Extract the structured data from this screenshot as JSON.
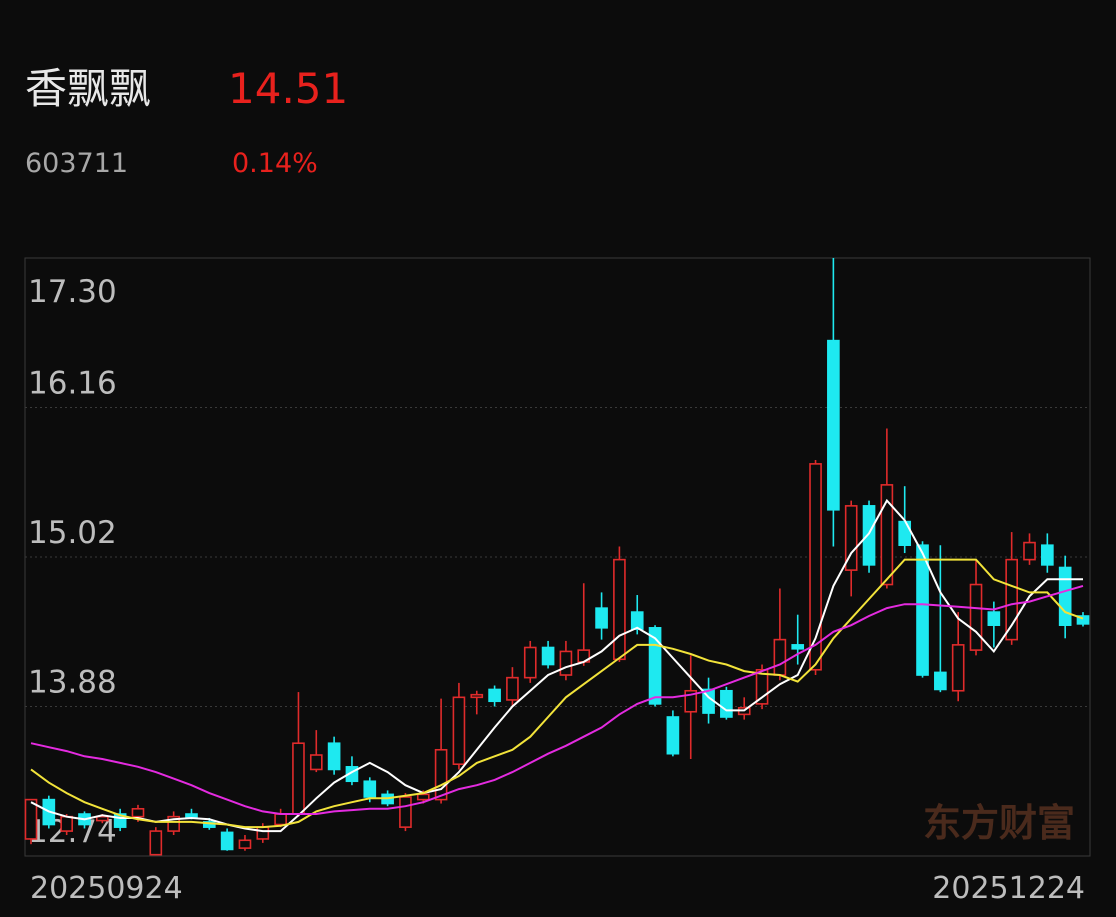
{
  "header": {
    "name": "香飘飘",
    "price": "14.51",
    "code": "603711",
    "change": "0.14%"
  },
  "chart_data": {
    "type": "candlestick",
    "categories": [
      "20250924",
      null,
      null,
      null,
      null,
      null,
      null,
      null,
      null,
      null,
      null,
      null,
      null,
      null,
      null,
      null,
      null,
      null,
      null,
      null,
      null,
      null,
      null,
      null,
      null,
      null,
      null,
      null,
      null,
      null,
      null,
      null,
      null,
      null,
      null,
      null,
      null,
      null,
      null,
      null,
      null,
      null,
      null,
      null,
      null,
      null,
      null,
      null,
      null,
      null,
      null,
      null,
      null,
      null,
      null,
      null,
      null,
      null,
      null,
      "20251224"
    ],
    "open": [
      12.87,
      13.17,
      12.93,
      13.06,
      13.01,
      13.06,
      13.04,
      12.75,
      12.93,
      13.06,
      13.0,
      12.92,
      12.8,
      12.87,
      12.98,
      13.06,
      13.4,
      13.6,
      13.42,
      13.31,
      13.21,
      12.96,
      13.17,
      13.17,
      13.44,
      13.95,
      14.01,
      13.93,
      14.1,
      14.33,
      14.12,
      14.22,
      14.63,
      14.24,
      14.6,
      14.48,
      13.8,
      13.84,
      14.01,
      14.0,
      13.82,
      13.9,
      14.12,
      14.35,
      14.16,
      16.67,
      14.92,
      15.41,
      14.81,
      15.29,
      15.11,
      14.14,
      14.0,
      14.31,
      14.6,
      14.39,
      15.0,
      15.11,
      14.94,
      14.57
    ],
    "high": [
      13.17,
      13.2,
      13.06,
      13.08,
      13.06,
      13.1,
      13.13,
      12.96,
      13.08,
      13.1,
      13.03,
      12.95,
      12.9,
      12.99,
      13.1,
      13.99,
      13.7,
      13.65,
      13.5,
      13.34,
      13.24,
      13.22,
      13.24,
      13.94,
      14.06,
      14.0,
      14.04,
      14.18,
      14.38,
      14.38,
      14.38,
      14.82,
      14.75,
      15.1,
      14.73,
      14.5,
      13.85,
      14.27,
      14.1,
      14.03,
      13.95,
      14.2,
      14.78,
      14.58,
      15.76,
      17.3,
      15.45,
      15.45,
      16.0,
      15.56,
      15.14,
      15.11,
      14.6,
      15.0,
      14.68,
      15.21,
      15.2,
      15.2,
      15.03,
      14.6
    ],
    "low": [
      12.83,
      12.95,
      12.9,
      12.95,
      12.99,
      12.93,
      13.0,
      12.75,
      12.9,
      13.02,
      12.94,
      12.78,
      12.78,
      12.84,
      12.96,
      13.04,
      13.38,
      13.36,
      13.28,
      13.15,
      13.12,
      12.93,
      13.14,
      13.14,
      13.4,
      13.82,
      13.88,
      13.88,
      14.06,
      14.17,
      14.08,
      14.19,
      14.39,
      14.22,
      14.43,
      13.88,
      13.5,
      13.48,
      13.75,
      13.78,
      13.78,
      13.86,
      14.08,
      14.2,
      14.12,
      15.1,
      14.72,
      14.9,
      14.78,
      15.05,
      14.1,
      13.99,
      13.92,
      14.27,
      14.33,
      14.35,
      14.96,
      14.9,
      14.4,
      14.49
    ],
    "close": [
      13.17,
      12.98,
      13.04,
      12.98,
      13.04,
      12.96,
      13.1,
      12.93,
      13.04,
      13.04,
      12.96,
      12.79,
      12.86,
      12.96,
      13.06,
      13.6,
      13.51,
      13.4,
      13.31,
      13.19,
      13.14,
      13.19,
      13.21,
      13.55,
      13.95,
      13.97,
      13.92,
      14.1,
      14.33,
      14.2,
      14.3,
      14.31,
      14.48,
      15.0,
      14.47,
      13.9,
      13.52,
      14.0,
      13.83,
      13.8,
      13.87,
      14.16,
      14.39,
      14.32,
      15.73,
      15.38,
      15.41,
      14.96,
      15.57,
      15.11,
      14.12,
      14.01,
      14.35,
      14.81,
      14.5,
      15.0,
      15.13,
      14.96,
      14.5,
      14.51
    ],
    "up_color": "#e02b2b",
    "down_color": "#1ee9f0",
    "lines": [
      {
        "color": "#ffffff",
        "values": [
          13.15,
          13.08,
          13.04,
          13.02,
          13.05,
          13.03,
          13.03,
          13.0,
          13.02,
          13.03,
          13.02,
          12.98,
          12.95,
          12.93,
          12.93,
          13.05,
          13.18,
          13.3,
          13.38,
          13.45,
          13.38,
          13.28,
          13.22,
          13.25,
          13.38,
          13.55,
          13.72,
          13.88,
          14.0,
          14.12,
          14.18,
          14.22,
          14.3,
          14.42,
          14.48,
          14.4,
          14.25,
          14.1,
          13.95,
          13.85,
          13.85,
          13.95,
          14.05,
          14.12,
          14.4,
          14.8,
          15.05,
          15.2,
          15.45,
          15.3,
          15.05,
          14.75,
          14.55,
          14.45,
          14.3,
          14.5,
          14.72,
          14.85,
          14.85,
          14.85
        ]
      },
      {
        "color": "#f2e33a",
        "values": [
          13.4,
          13.3,
          13.22,
          13.15,
          13.1,
          13.05,
          13.02,
          13.0,
          13.0,
          13.0,
          12.99,
          12.98,
          12.96,
          12.96,
          12.97,
          13.0,
          13.08,
          13.12,
          13.15,
          13.18,
          13.18,
          13.2,
          13.22,
          13.28,
          13.35,
          13.45,
          13.5,
          13.55,
          13.65,
          13.8,
          13.95,
          14.05,
          14.15,
          14.25,
          14.35,
          14.35,
          14.32,
          14.28,
          14.23,
          14.2,
          14.15,
          14.13,
          14.12,
          14.07,
          14.2,
          14.4,
          14.55,
          14.7,
          14.85,
          15.0,
          15.0,
          15.0,
          15.0,
          15.0,
          14.85,
          14.8,
          14.75,
          14.75,
          14.6,
          14.55
        ]
      },
      {
        "color": "#e42be0",
        "values": [
          13.6,
          13.57,
          13.54,
          13.5,
          13.48,
          13.45,
          13.42,
          13.38,
          13.33,
          13.28,
          13.22,
          13.17,
          13.12,
          13.08,
          13.06,
          13.06,
          13.06,
          13.08,
          13.09,
          13.1,
          13.1,
          13.12,
          13.15,
          13.2,
          13.25,
          13.28,
          13.32,
          13.38,
          13.45,
          13.52,
          13.58,
          13.65,
          13.72,
          13.82,
          13.9,
          13.95,
          13.95,
          13.97,
          14.0,
          14.05,
          14.1,
          14.15,
          14.2,
          14.28,
          14.35,
          14.45,
          14.5,
          14.57,
          14.63,
          14.66,
          14.66,
          14.65,
          14.64,
          14.63,
          14.62,
          14.66,
          14.68,
          14.72,
          14.76,
          14.8
        ]
      }
    ],
    "ylim": [
      12.74,
      17.3
    ],
    "yticks": [
      12.74,
      13.88,
      15.02,
      16.16,
      {
        "value": 17.3,
        "label": "17.30"
      }
    ],
    "grid": true,
    "watermark": "东方财富"
  }
}
